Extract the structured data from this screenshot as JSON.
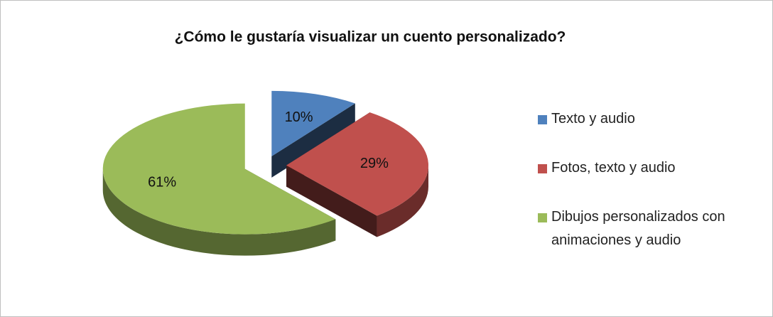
{
  "chart_data": {
    "type": "pie3d",
    "title": "¿Cómo le gustaría visualizar un cuento personalizado?",
    "categories": [
      "Texto y audio",
      "Fotos, texto y audio",
      "Dibujos personalizados con animaciones y audio"
    ],
    "values": [
      10,
      29,
      61
    ],
    "value_labels": [
      "10%",
      "29%",
      "61%"
    ],
    "colors": [
      "#4f81bd",
      "#c0504d",
      "#9bbb59"
    ],
    "legend": "right"
  }
}
